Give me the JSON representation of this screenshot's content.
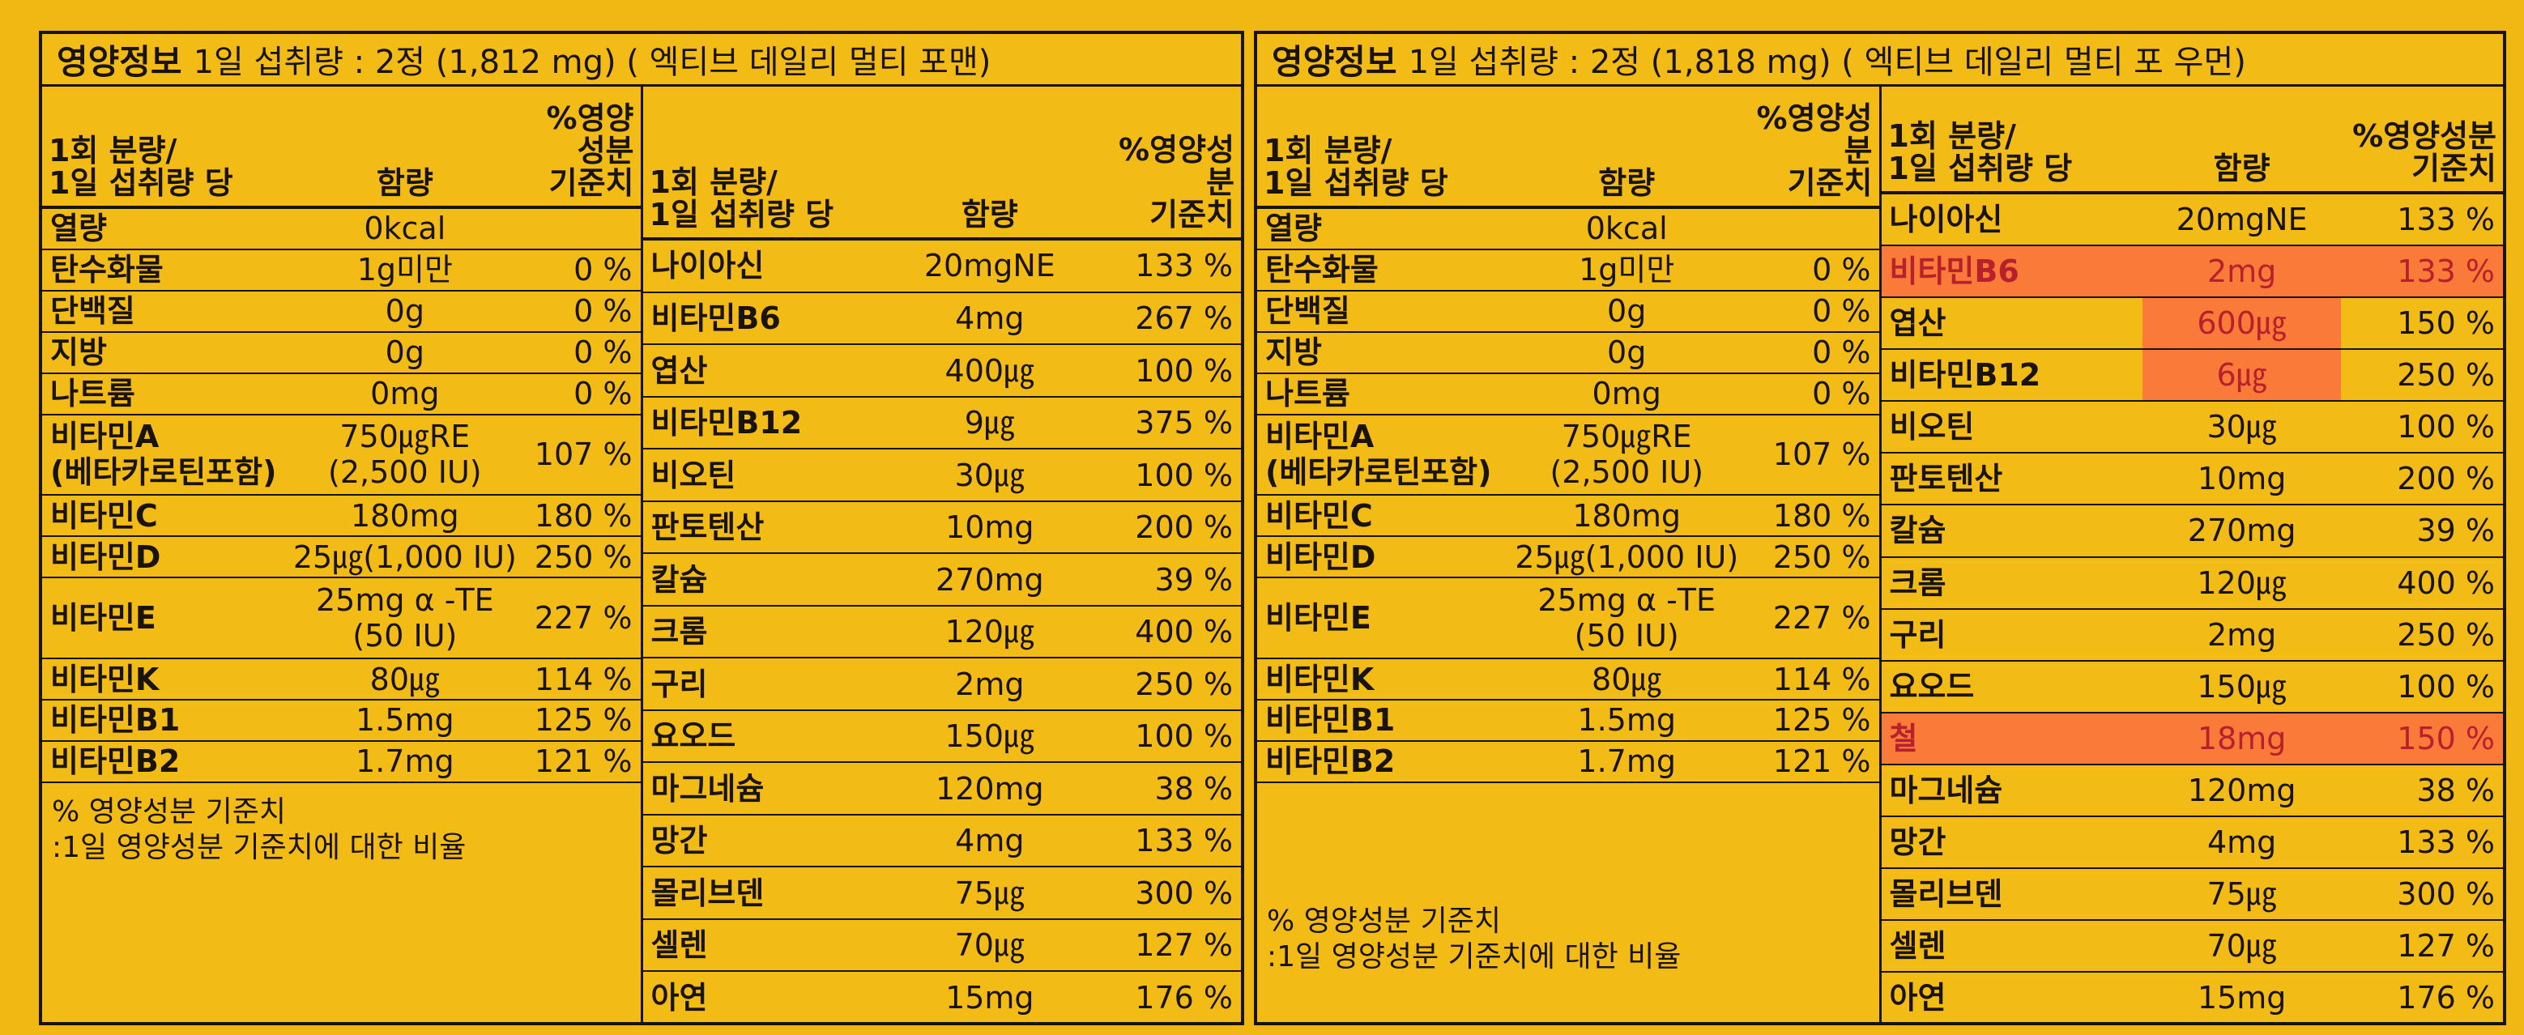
{
  "panels": [
    {
      "title": "영양정보",
      "serving": "1일 섭취량 : 2정 (1,812 mg) ( 엑티브 데일리 멀티 포맨)",
      "left": {
        "header": [
          [
            "1회 분량/",
            "1일 섭취량 당"
          ],
          "함량",
          [
            "%영양성분",
            "기준치"
          ]
        ],
        "rows": [
          [
            "열량",
            "0kcal"
          ],
          [
            "탄수화물",
            "1g미만",
            "0 %"
          ],
          [
            "단백질",
            "0g",
            "0 %"
          ],
          [
            "지방",
            "0g",
            "0 %"
          ],
          [
            "나트륨",
            "0mg",
            "0 %"
          ],
          [
            [
              "비타민A",
              "(베타카로틴포함)"
            ],
            [
              "750㎍RE",
              "(2,500 IU)"
            ],
            "107 %"
          ],
          [
            "비타민C",
            "180mg",
            "180 %"
          ],
          [
            "비타민D",
            "25㎍(1,000 IU)",
            "250 %"
          ],
          [
            "비타민E",
            [
              "25mg α -TE",
              "(50 IU)"
            ],
            "227 %"
          ],
          [
            "비타민K",
            "80㎍",
            "114 %"
          ],
          [
            "비타민B1",
            "1.5mg",
            "125 %"
          ],
          [
            "비타민B2",
            "1.7mg",
            "121 %"
          ]
        ]
      },
      "right": {
        "header": [
          [
            "1회 분량/",
            "1일 섭취량 당"
          ],
          "함량",
          [
            "%영양성분",
            "기준치"
          ]
        ],
        "rows": [
          [
            "나이아신",
            "20mgNE",
            "133 %"
          ],
          [
            "비타민B6",
            "4mg",
            "267 %"
          ],
          [
            "엽산",
            "400㎍",
            "100 %"
          ],
          [
            "비타민B12",
            "9㎍",
            "375 %"
          ],
          [
            "비오틴",
            "30㎍",
            "100 %"
          ],
          [
            "판토텐산",
            "10mg",
            "200 %"
          ],
          [
            "칼슘",
            "270mg",
            "39 %"
          ],
          [
            "크롬",
            "120㎍",
            "400 %"
          ],
          [
            "구리",
            "2mg",
            "250 %"
          ],
          [
            "요오드",
            "150㎍",
            "100 %"
          ],
          [
            "마그네슘",
            "120mg",
            "38 %"
          ],
          [
            "망간",
            "4mg",
            "133 %"
          ],
          [
            "몰리브덴",
            "75㎍",
            "300 %"
          ],
          [
            "셀렌",
            "70㎍",
            "127 %"
          ],
          [
            "아연",
            "15mg",
            "176 %"
          ]
        ]
      },
      "footnote": [
        "% 영양성분 기준치",
        ":1일 영양성분 기준치에 대한 비율"
      ]
    },
    {
      "title": "영양정보",
      "serving": "1일 섭취량 : 2정 (1,818 mg) ( 엑티브 데일리 멀티 포 우먼)",
      "left": {
        "header": [
          [
            "1회 분량/",
            "1일 섭취량 당"
          ],
          "함량",
          [
            "%영양성분",
            "기준치"
          ]
        ],
        "rows": [
          [
            "열량",
            "0kcal"
          ],
          [
            "탄수화물",
            "1g미만",
            "0 %"
          ],
          [
            "단백질",
            "0g",
            "0 %"
          ],
          [
            "지방",
            "0g",
            "0 %"
          ],
          [
            "나트륨",
            "0mg",
            "0 %"
          ],
          [
            [
              "비타민A",
              "(베타카로틴포함)"
            ],
            [
              "750㎍RE",
              "(2,500 IU)"
            ],
            "107 %"
          ],
          [
            "비타민C",
            "180mg",
            "180 %"
          ],
          [
            "비타민D",
            "25㎍(1,000 IU)",
            "250 %"
          ],
          [
            "비타민E",
            [
              "25mg α -TE",
              "(50 IU)"
            ],
            "227 %"
          ],
          [
            "비타민K",
            "80㎍",
            "114 %"
          ],
          [
            "비타민B1",
            "1.5mg",
            "125 %"
          ],
          [
            "비타민B2",
            "1.7mg",
            "121 %"
          ]
        ]
      },
      "right": {
        "header": [
          [
            "1회 분량/",
            "1일 섭취량 당"
          ],
          "함량",
          [
            "%영양성분",
            "기준치"
          ]
        ],
        "rows": [
          [
            "나이아신",
            "20mgNE",
            "133 %"
          ],
          [
            "비타민B6",
            "2mg",
            "133 %"
          ],
          [
            "엽산",
            "600㎍",
            "150 %"
          ],
          [
            "비타민B12",
            "6㎍",
            "250 %"
          ],
          [
            "비오틴",
            "30㎍",
            "100 %"
          ],
          [
            "판토텐산",
            "10mg",
            "200 %"
          ],
          [
            "칼슘",
            "270mg",
            "39 %"
          ],
          [
            "크롬",
            "120㎍",
            "400 %"
          ],
          [
            "구리",
            "2mg",
            "250 %"
          ],
          [
            "요오드",
            "150㎍",
            "100 %"
          ],
          [
            "철",
            "18mg",
            "150 %"
          ],
          [
            "마그네슘",
            "120mg",
            "38 %"
          ],
          [
            "망간",
            "4mg",
            "133 %"
          ],
          [
            "몰리브덴",
            "75㎍",
            "300 %"
          ],
          [
            "셀렌",
            "70㎍",
            "127 %"
          ],
          [
            "아연",
            "15mg",
            "176 %"
          ]
        ]
      }
    }
  ]
}
